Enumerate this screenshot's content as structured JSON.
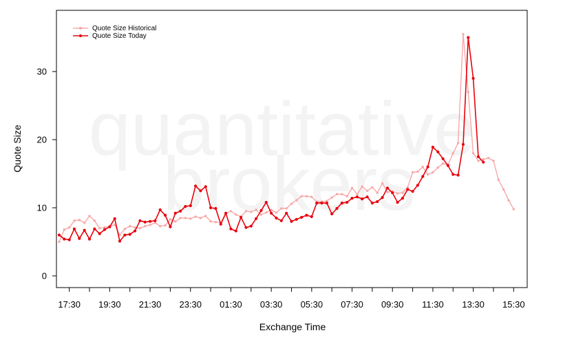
{
  "watermark": {
    "line1": "quantitative",
    "line2": "brokers"
  },
  "chart_data": {
    "type": "line",
    "xlabel": "Exchange Time",
    "ylabel": "Quote Size",
    "ylim": [
      -1.5,
      39
    ],
    "yticks": [
      0,
      10,
      20,
      30
    ],
    "x_start": "17:00",
    "x_step_minutes": 15,
    "xticks": [
      "17:30",
      "19:30",
      "21:30",
      "23:30",
      "01:30",
      "03:30",
      "05:30",
      "07:30",
      "09:30",
      "11:30",
      "13:30",
      "15:30"
    ],
    "legend": {
      "position": "top-left",
      "entries": [
        "Quote Size Historical",
        "Quote Size Today"
      ]
    },
    "series": [
      {
        "name": "Quote Size Historical",
        "color": "#f8a8a8",
        "values": [
          5.0,
          6.8,
          7.1,
          8.1,
          8.2,
          7.8,
          8.8,
          8.1,
          7.0,
          7.1,
          7.3,
          7.5,
          6.0,
          6.9,
          7.3,
          7.1,
          7.0,
          7.3,
          7.5,
          7.8,
          7.3,
          7.4,
          8.3,
          8.0,
          8.5,
          8.5,
          8.4,
          8.7,
          8.5,
          8.8,
          8.0,
          7.9,
          7.8,
          9.2,
          9.5,
          9.0,
          8.7,
          9.5,
          9.4,
          9.7,
          9.0,
          9.3,
          9.7,
          9.3,
          9.9,
          9.9,
          10.6,
          11.1,
          11.7,
          11.7,
          11.6,
          10.9,
          10.9,
          11.0,
          11.5,
          12.0,
          12.0,
          11.7,
          12.9,
          12.0,
          13.1,
          12.5,
          13.0,
          12.2,
          13.6,
          12.3,
          12.4,
          12.1,
          12.2,
          13.0,
          15.2,
          15.3,
          16.0,
          14.9,
          15.2,
          15.9,
          16.5,
          16.3,
          18.0,
          19.5,
          35.5,
          27.0,
          18.0,
          16.9,
          17.1,
          17.3,
          16.9,
          14.1,
          12.7,
          11.1,
          9.8
        ]
      },
      {
        "name": "Quote Size Today",
        "color": "#e8000b",
        "values": [
          6.0,
          5.4,
          5.3,
          6.9,
          5.5,
          6.7,
          5.4,
          6.9,
          6.2,
          6.8,
          7.2,
          8.4,
          5.1,
          6.0,
          6.1,
          6.6,
          8.1,
          7.9,
          8.0,
          8.1,
          9.7,
          8.9,
          7.2,
          9.2,
          9.5,
          10.2,
          10.3,
          13.2,
          12.5,
          13.1,
          10.0,
          9.9,
          7.6,
          9.2,
          6.9,
          6.6,
          8.6,
          7.1,
          7.3,
          8.4,
          9.6,
          10.8,
          9.2,
          8.5,
          8.1,
          9.2,
          8.0,
          8.3,
          8.6,
          8.9,
          8.7,
          10.7,
          10.7,
          10.7,
          9.1,
          9.9,
          10.7,
          10.8,
          11.4,
          11.6,
          11.3,
          11.6,
          10.7,
          10.9,
          11.5,
          12.9,
          12.2,
          10.8,
          11.4,
          12.7,
          12.4,
          13.3,
          14.6,
          16.0,
          18.9,
          18.2,
          17.2,
          16.2,
          14.9,
          14.8,
          19.3,
          35.0,
          29.0,
          17.5,
          16.7
        ]
      }
    ]
  }
}
